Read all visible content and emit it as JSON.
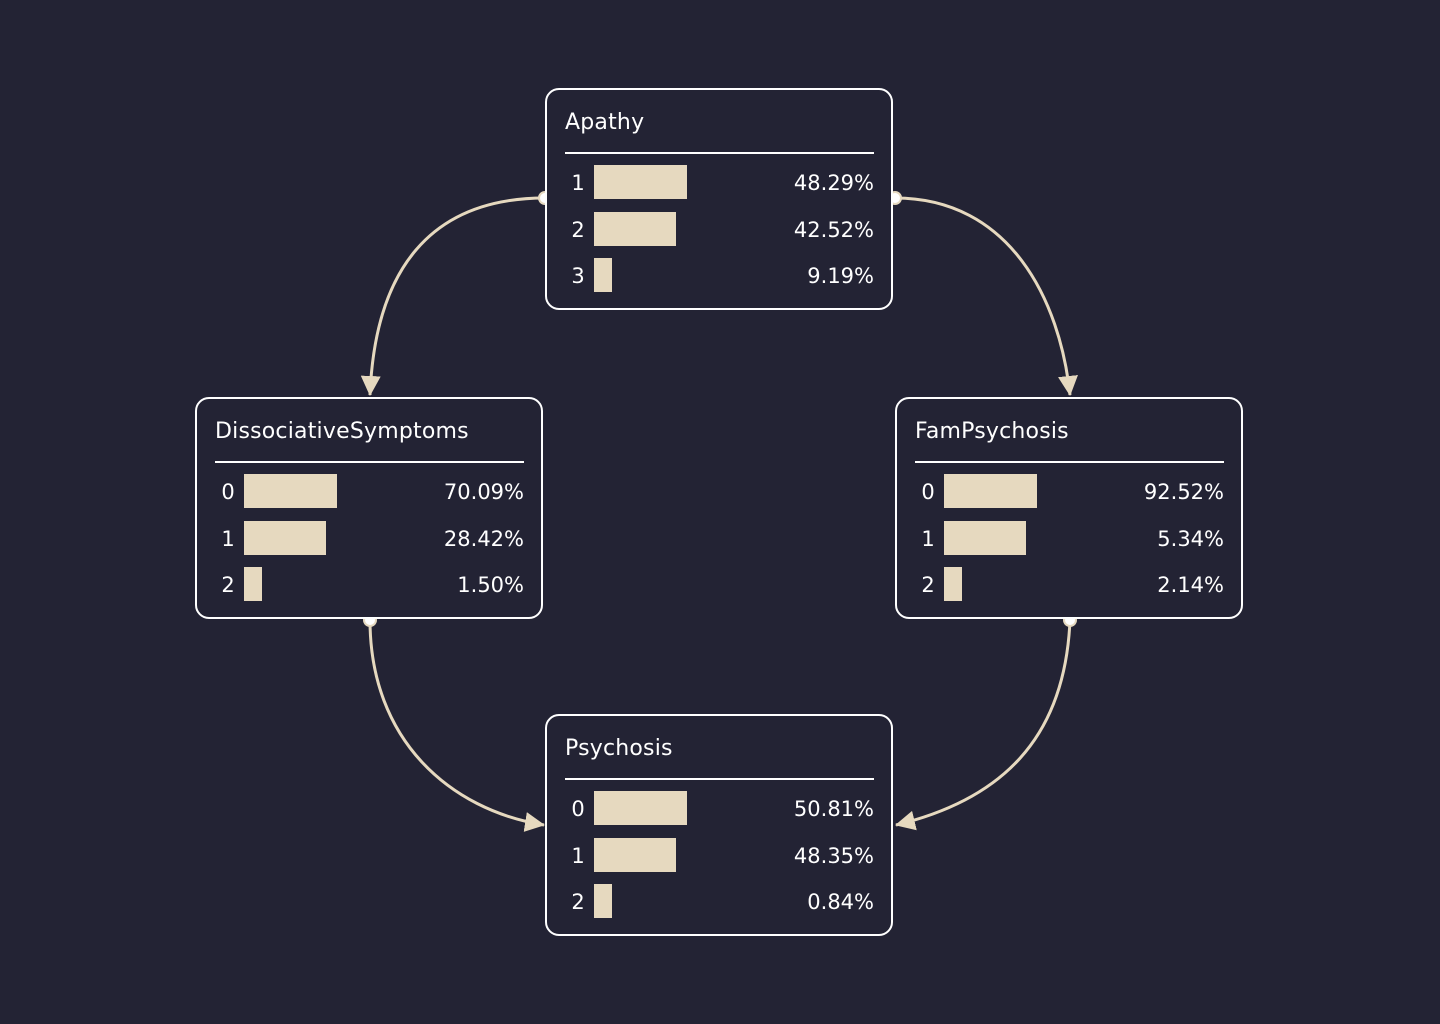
{
  "colors": {
    "background": "#232334",
    "node_border": "#ffffff",
    "bar": "#e6d9bf",
    "edge": "#e6d9bf",
    "text": "#ffffff"
  },
  "nodes": [
    {
      "id": "apathy",
      "title": "Apathy",
      "rows": [
        {
          "state": "1",
          "value": "48.29%",
          "bar": 0.99
        },
        {
          "state": "2",
          "value": "42.52%",
          "bar": 0.87
        },
        {
          "state": "3",
          "value": "9.19%",
          "bar": 0.19
        }
      ]
    },
    {
      "id": "dissociative",
      "title": "DissociativeSymptoms",
      "rows": [
        {
          "state": "0",
          "value": "70.09%",
          "bar": 0.99
        },
        {
          "state": "1",
          "value": "28.42%",
          "bar": 0.87
        },
        {
          "state": "2",
          "value": "1.50%",
          "bar": 0.19
        }
      ]
    },
    {
      "id": "fampsychosis",
      "title": "FamPsychosis",
      "rows": [
        {
          "state": "0",
          "value": "92.52%",
          "bar": 0.99
        },
        {
          "state": "1",
          "value": "5.34%",
          "bar": 0.87
        },
        {
          "state": "2",
          "value": "2.14%",
          "bar": 0.19
        }
      ]
    },
    {
      "id": "psychosis",
      "title": "Psychosis",
      "rows": [
        {
          "state": "0",
          "value": "50.81%",
          "bar": 0.99
        },
        {
          "state": "1",
          "value": "48.35%",
          "bar": 0.87
        },
        {
          "state": "2",
          "value": "0.84%",
          "bar": 0.19
        }
      ]
    }
  ],
  "edges": [
    {
      "from": "apathy",
      "to": "dissociative"
    },
    {
      "from": "apathy",
      "to": "fampsychosis"
    },
    {
      "from": "dissociative",
      "to": "psychosis"
    },
    {
      "from": "fampsychosis",
      "to": "psychosis"
    }
  ]
}
